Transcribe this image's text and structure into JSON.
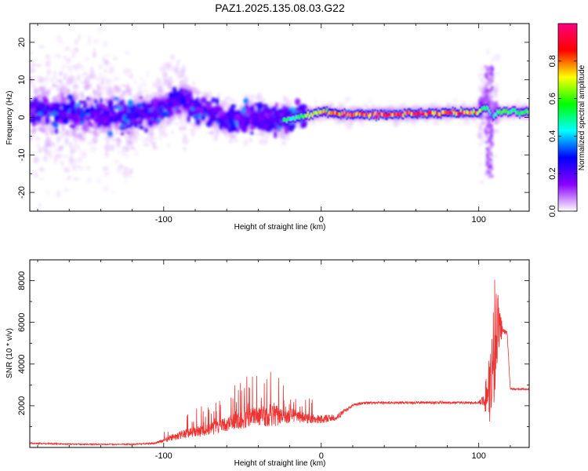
{
  "figure": {
    "title": "PAZ1.2025.135.08.03.G22"
  },
  "chart_data": [
    {
      "type": "heatmap",
      "xlabel": "Height of straight line (km)",
      "ylabel": "Frequency (Hz)",
      "xlim": [
        -185,
        132
      ],
      "ylim": [
        -25,
        25
      ],
      "xticks": [
        -100,
        0,
        100
      ],
      "yticks": [
        -20,
        -10,
        0,
        10,
        20
      ],
      "colorbar": {
        "label": "Normalized spectral amplitude",
        "range": [
          0,
          1
        ],
        "ticks": [
          0.0,
          0.2,
          0.4,
          0.6,
          0.8
        ],
        "colormap": [
          "#ffffff",
          "#8a00ff",
          "#0000ff",
          "#00ffff",
          "#00ff00",
          "#ffff00",
          "#ff0000",
          "#ff0080"
        ]
      },
      "ridge": {
        "x": [
          -185,
          -160,
          -140,
          -120,
          -105,
          -95,
          -88,
          -80,
          -70,
          -60,
          -50,
          -40,
          -30,
          -20,
          -10,
          0,
          10,
          20,
          40,
          60,
          80,
          95,
          100,
          105,
          108,
          112,
          120,
          132
        ],
        "freq": [
          1.5,
          1.0,
          0.5,
          0.5,
          1.5,
          4.0,
          5.0,
          3.0,
          1.0,
          -1.0,
          -0.5,
          0.0,
          -1.0,
          -0.5,
          0.5,
          1.5,
          1.0,
          0.8,
          0.8,
          1.0,
          1.2,
          1.2,
          1.5,
          3.0,
          0.0,
          1.5,
          1.5,
          1.5
        ],
        "amplitude": [
          0.25,
          0.25,
          0.25,
          0.25,
          0.25,
          0.3,
          0.4,
          0.4,
          0.35,
          0.4,
          0.4,
          0.45,
          0.45,
          0.55,
          0.65,
          0.75,
          0.85,
          0.9,
          0.9,
          0.9,
          0.9,
          0.85,
          0.8,
          0.5,
          0.4,
          0.6,
          0.6,
          0.6
        ]
      }
    },
    {
      "type": "line",
      "xlabel": "Height of straight line (km)",
      "ylabel": "SNR (10 * v/v)",
      "xlim": [
        -185,
        132
      ],
      "ylim": [
        0,
        9000
      ],
      "xticks": [
        -100,
        0,
        100
      ],
      "yticks": [
        2000,
        4000,
        6000,
        8000
      ],
      "color": "#ee3333",
      "envelope": {
        "x": [
          -185,
          -150,
          -120,
          -105,
          -100,
          -90,
          -80,
          -70,
          -60,
          -50,
          -40,
          -30,
          -20,
          -10,
          0,
          10,
          20,
          30,
          50,
          70,
          90,
          100,
          104,
          106,
          108,
          110,
          112,
          115,
          118,
          120,
          125,
          132
        ],
        "mean": [
          200,
          150,
          150,
          200,
          350,
          600,
          750,
          900,
          1100,
          1350,
          1500,
          1500,
          1550,
          1400,
          1350,
          1450,
          2050,
          2150,
          2150,
          2150,
          2150,
          2150,
          2300,
          2800,
          3500,
          5000,
          6000,
          5600,
          5500,
          2800,
          2800,
          2800
        ],
        "spread": [
          80,
          60,
          60,
          90,
          200,
          400,
          500,
          600,
          700,
          900,
          1000,
          1000,
          800,
          500,
          400,
          300,
          150,
          120,
          120,
          120,
          120,
          150,
          700,
          1500,
          2500,
          3500,
          1500,
          300,
          200,
          100,
          80,
          80
        ]
      }
    }
  ]
}
